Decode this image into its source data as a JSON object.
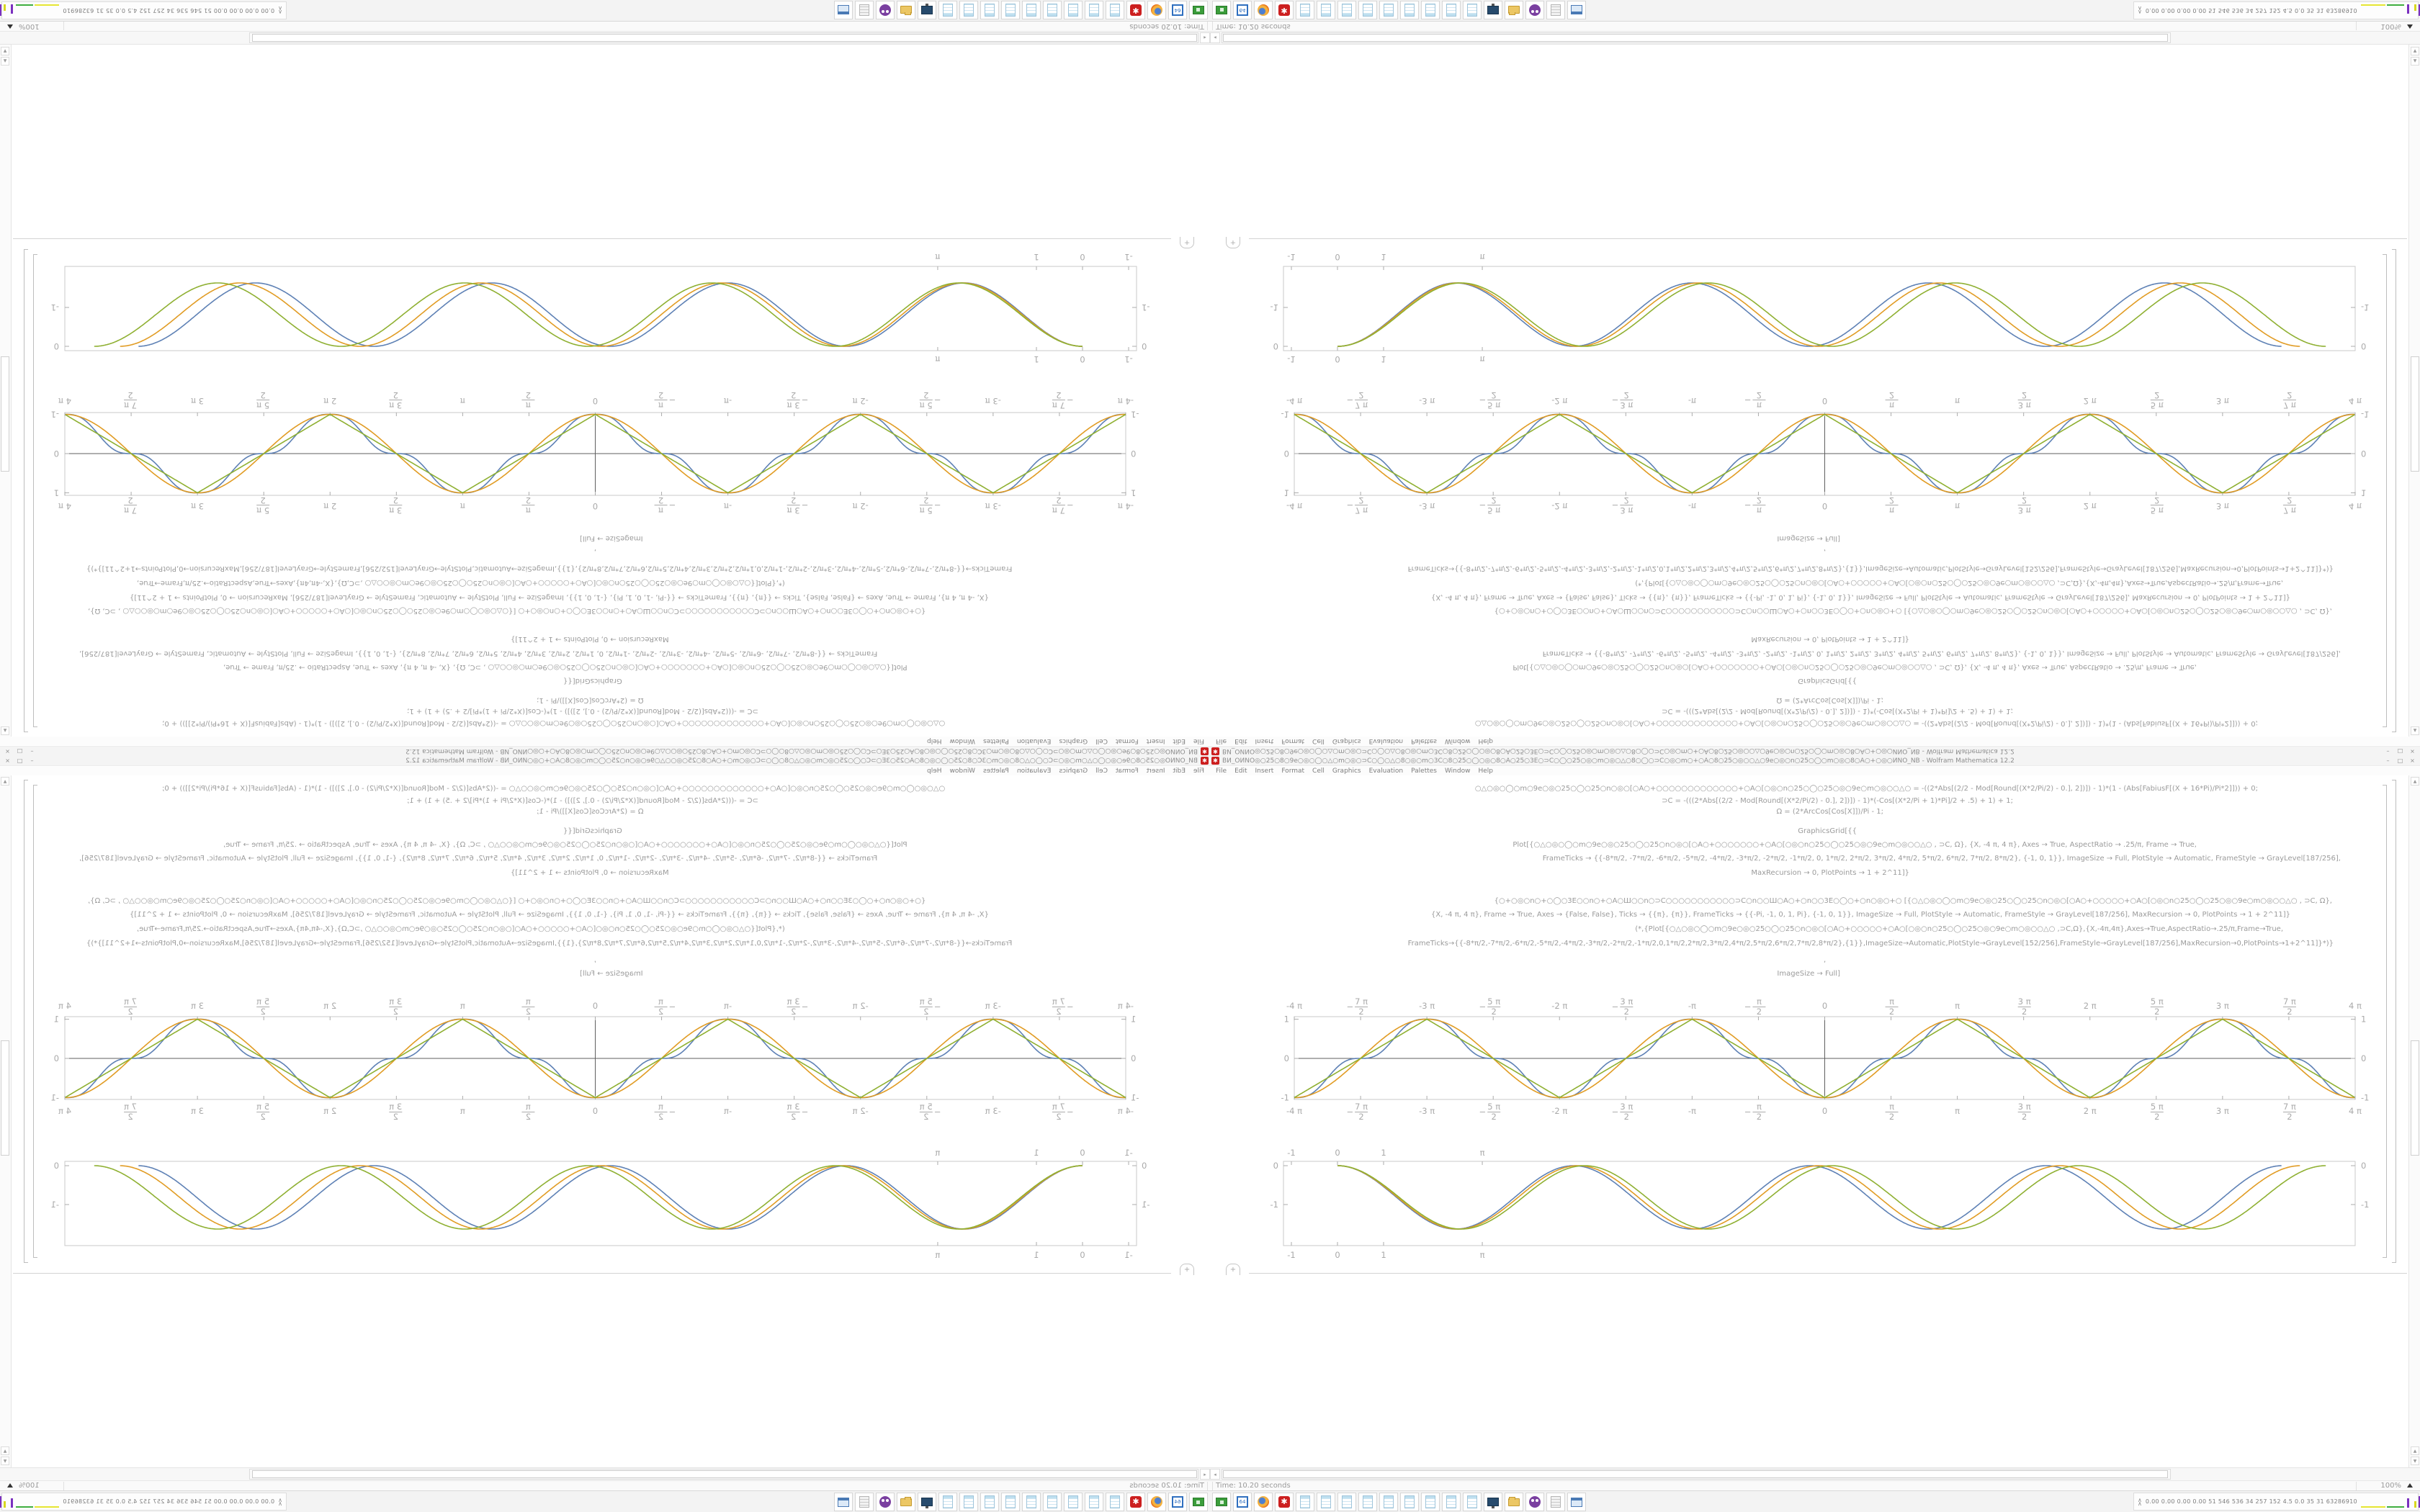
{
  "window": {
    "title": "BИ_ОИNО◎○25○8○9e○◎○◯○△○m○◎○⊃C○◯○△○8○◎○m○3C○8○25○◯○◎○8○A○25○3E○⊃C○◯○25○◎○m○◎○△○8○◯○⊃C○◎○m○+○A○8○25○◎○○△○9e○◎○n○25○◯○m○◎○8○A○+○◎○ИNО_NB - Wolfram Mathematica 12.2",
    "min_label": "–",
    "restore_label": "□",
    "close_label": "×"
  },
  "menubar": {
    "items": [
      "File",
      "Edit",
      "Insert",
      "Format",
      "Cell",
      "Graphics",
      "Evaluation",
      "Palettes",
      "Window",
      "Help"
    ]
  },
  "notebook": {
    "insert_plus": "+",
    "code_lines": [
      "○△○◎○◯○m○9e○◎○25○◯○25○n○◎○[○A○+○○○○○○○○○○○○○+○A○[○◎○n○25○◯○25○◎○9e○m○◎○○△○  = -((2*Abs[(2/2 - Mod[Round[(X*2/Pi/2) - 0.], 2])]) - 1)*(1 - (Abs[FabiusF[(X + 16*Pi)/Pi*2]])) + 0;",
      "⊃C = -(((2*Abs[(2/2 - Mod[Round[(X*2/Pi/2) - 0.], 2])]) - 1)*(-Cos[(X*2/Pi + 1)*Pi]/2 + .5) + 1) + 1;",
      "Ω = (2*ArcCos[Cos[X]])/Pi - 1;",
      "GraphicsGrid[{{",
      "Plot[{○△○◎○◯○m○9e○◎○25○◯○25○n○◎○[○A○+○○○○○○○+○A○[○◎○n○25○◯○25○◎○9e○m○◎○○△○   , ⊃C, Ω}, {X, -4 π, 4 π}, Axes → True, AspectRatio → .25/π, Frame → True,",
      "FrameTicks → {{-8*π/2, -7*π/2, -6*π/2, -5*π/2, -4*π/2, -3*π/2, -2*π/2, -1*π/2, 0, 1*π/2, 2*π/2, 3*π/2, 4*π/2, 5*π/2, 6*π/2, 7*π/2, 8*π/2}, {-1, 0, 1}}, ImageSize → Full, PlotStyle → Automatic, FrameStyle → GrayLevel[187/256],",
      "MaxRecursion → 0, PlotPoints → 1 + 2^11]}",
      "{○+○◎○n○+○◯○3E○○n○+○A○Ш○○n○⊃C○○○○○○○○○○○⊃C○n○○Ш○A○+○n○○3E○◯○+○n○◎○+○   [{○△○◎○◯○m○9e○◎○25○◯○25○n○◎○[○A○+○○○○○+○A○[○◎○n○25○◯○25○◎○9e○m○◎○○△○   , ⊃C, Ω},",
      "{X, -4 π, 4 π}, Frame → True, Axes → {False, False}, Ticks → {{π}, {π}}, FrameTicks → {{-Pi, -1, 0, 1, Pi}, {-1, 0, 1}}, ImageSize → Full, PlotStyle → Automatic, FrameStyle → GrayLevel[187/256], MaxRecursion → 0, PlotPoints → 1 + 2^11]}",
      "(*,{Plot[{○△○◎○◯○m○9e○◎○25○◯○25○n○◎○[○A○+○○○○○+○A○[○◎○n○25○◯○25○◎○9e○m○◎○○△○   ,⊃C,Ω},{X,-4π,4π},Axes→True,AspectRatio→.25/π,Frame→True,",
      "FrameTicks→{{-8*π/2,-7*π/2,-6*π/2,-5*π/2,-4*π/2,-3*π/2,-2*π/2,-1*π/2,0,1*π/2,2*π/2,3*π/2,4*π/2,5*π/2,6*π/2,7*π/2,8*π/2},{1}},ImageSize→Automatic,PlotStyle→GrayLevel[152/256],FrameStyle→GrayLevel[187/256],MaxRecursion→0,PlotPoints→1+2^11]}*)}",
      ",",
      "ImageSize → Full]"
    ]
  },
  "chart_data": [
    {
      "type": "line",
      "title": "",
      "xlabel": "",
      "ylabel": "",
      "frame": true,
      "axes": true,
      "x_range_pi_units": [
        -4,
        4
      ],
      "ylim": [
        -1,
        1
      ],
      "xticks": [
        {
          "u": -8,
          "t": "-4 π"
        },
        {
          "u": -7,
          "neg": true,
          "n": "7 π",
          "d": "2"
        },
        {
          "u": -6,
          "t": "-3 π"
        },
        {
          "u": -5,
          "neg": true,
          "n": "5 π",
          "d": "2"
        },
        {
          "u": -4,
          "t": "-2 π"
        },
        {
          "u": -3,
          "neg": true,
          "n": "3 π",
          "d": "2"
        },
        {
          "u": -2,
          "t": "-π"
        },
        {
          "u": -1,
          "neg": true,
          "n": "π",
          "d": "2"
        },
        {
          "u": 0,
          "t": "0"
        },
        {
          "u": 1,
          "neg": false,
          "n": "π",
          "d": "2"
        },
        {
          "u": 2,
          "t": "π"
        },
        {
          "u": 3,
          "neg": false,
          "n": "3 π",
          "d": "2"
        },
        {
          "u": 4,
          "t": "2 π"
        },
        {
          "u": 5,
          "neg": false,
          "n": "5 π",
          "d": "2"
        },
        {
          "u": 6,
          "t": "3 π"
        },
        {
          "u": 7,
          "neg": false,
          "n": "7 π",
          "d": "2"
        },
        {
          "u": 8,
          "t": "4 π"
        }
      ],
      "yticks": [
        {
          "v": 1,
          "t": "1"
        },
        {
          "v": 0,
          "t": "0"
        },
        {
          "v": -1,
          "t": "-1"
        }
      ],
      "series": [
        {
          "id": "fabius-wave",
          "color": "#5e81b5",
          "fn": "fabius"
        },
        {
          "id": "neg-cos",
          "color": "#e19c24",
          "fn": "negcos"
        },
        {
          "id": "triangle-wave",
          "color": "#8fb032",
          "fn": "triangle"
        }
      ]
    },
    {
      "type": "line",
      "title": "",
      "xlabel": "",
      "ylabel": "",
      "frame": true,
      "axes": false,
      "amp": 0.815,
      "xticks": [
        {
          "x": -1,
          "t": "-1"
        },
        {
          "x": 0,
          "t": "0"
        },
        {
          "x": 1,
          "t": "1"
        },
        {
          "x": 3.14159,
          "t": "π"
        }
      ],
      "yticks": [
        {
          "v": 0,
          "t": "0"
        },
        {
          "v": -1,
          "t": "-1"
        }
      ],
      "series": [
        {
          "id": "wave-blue",
          "color": "#5e81b5",
          "omega": 1.226
        },
        {
          "id": "wave-orange",
          "color": "#e19c24",
          "omega": 1.203
        },
        {
          "id": "wave-green",
          "color": "#8fb032",
          "omega": 1.172
        }
      ]
    }
  ],
  "statusbar": {
    "time": "Time: 10.20 seconds",
    "zoom": "100%"
  },
  "taskbar": {
    "icons": [
      "chip",
      "floppy-64",
      "firefox",
      "mathematica",
      "notepad",
      "notepad",
      "notepad",
      "notepad",
      "notepad",
      "notepad",
      "notepad",
      "notepad",
      "notepad",
      "monitor",
      "folder",
      "owl",
      "scroll",
      "window"
    ],
    "floppy_label": "64",
    "gear_glyph": "✱",
    "tray_stats": "0.00 0.00 0.00 0.00  51  546 536  34  257 152  4.5  0.0  35  31  63286910"
  },
  "colors": {
    "curve_blue": "#5e81b5",
    "curve_orange": "#e19c24",
    "curve_green": "#8fb032",
    "frame_gray": "#c9c9c9",
    "axis_gray": "#5f5f5f",
    "code_gray": "#9b9b9b"
  }
}
